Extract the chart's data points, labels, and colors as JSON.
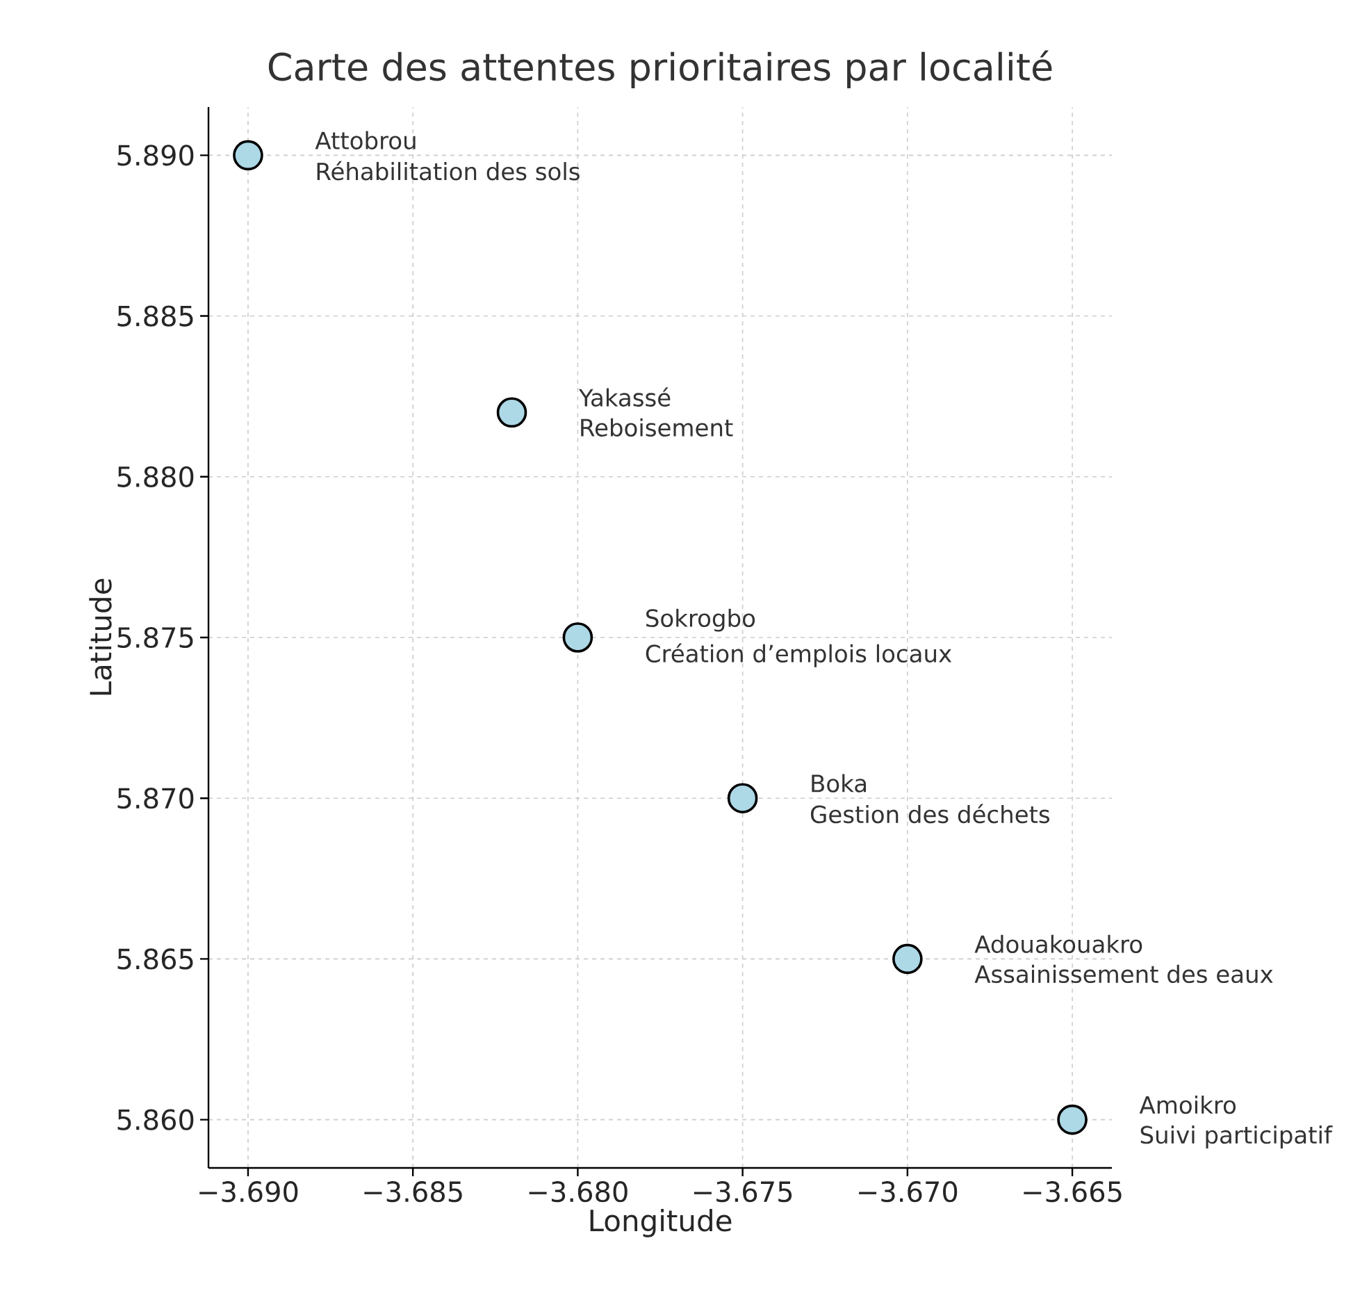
{
  "chart_data": {
    "type": "scatter",
    "title": "Carte des attentes prioritaires par localité",
    "xlabel": "Longitude",
    "ylabel": "Latitude",
    "x": [
      -3.69,
      -3.682,
      -3.68,
      -3.675,
      -3.67,
      -3.665
    ],
    "values": [
      5.89,
      5.882,
      5.875,
      5.87,
      5.865,
      5.86
    ],
    "color": "#add8e6",
    "marker": "circle",
    "grid": true,
    "xlim": [
      -3.6912,
      -3.6638
    ],
    "ylim": [
      5.8585,
      5.8915
    ],
    "xticks": [
      {
        "value": -3.69,
        "label": "−3.690"
      },
      {
        "value": -3.685,
        "label": "−3.685"
      },
      {
        "value": -3.68,
        "label": "−3.680"
      },
      {
        "value": -3.675,
        "label": "−3.675"
      },
      {
        "value": -3.67,
        "label": "−3.670"
      },
      {
        "value": -3.665,
        "label": "−3.665"
      }
    ],
    "yticks": [
      {
        "value": 5.86,
        "label": "5.860"
      },
      {
        "value": 5.865,
        "label": "5.865"
      },
      {
        "value": 5.87,
        "label": "5.870"
      },
      {
        "value": 5.875,
        "label": "5.875"
      },
      {
        "value": 5.88,
        "label": "5.880"
      },
      {
        "value": 5.885,
        "label": "5.885"
      },
      {
        "value": 5.89,
        "label": "5.890"
      }
    ],
    "annotations": [
      {
        "text": "Attobrou",
        "x": -3.69,
        "y": 5.89
      },
      {
        "text": "Réhabilitation des sols",
        "x": -3.69,
        "y": 5.89
      },
      {
        "text": "Yakassé",
        "x": -3.682,
        "y": 5.882
      },
      {
        "text": "Reboisement",
        "x": -3.682,
        "y": 5.882
      },
      {
        "text": "Sokrogbo",
        "x": -3.68,
        "y": 5.875
      },
      {
        "text": "Création d’emplois locaux",
        "x": -3.68,
        "y": 5.875
      },
      {
        "text": "Boka",
        "x": -3.675,
        "y": 5.87
      },
      {
        "text": "Gestion des déchets",
        "x": -3.675,
        "y": 5.87
      },
      {
        "text": "Adouakouakro",
        "x": -3.67,
        "y": 5.865
      },
      {
        "text": "Assainissement des eaux",
        "x": -3.67,
        "y": 5.865
      },
      {
        "text": "Amoikro",
        "x": -3.665,
        "y": 5.86
      },
      {
        "text": "Suivi participatif",
        "x": -3.665,
        "y": 5.86
      }
    ]
  }
}
